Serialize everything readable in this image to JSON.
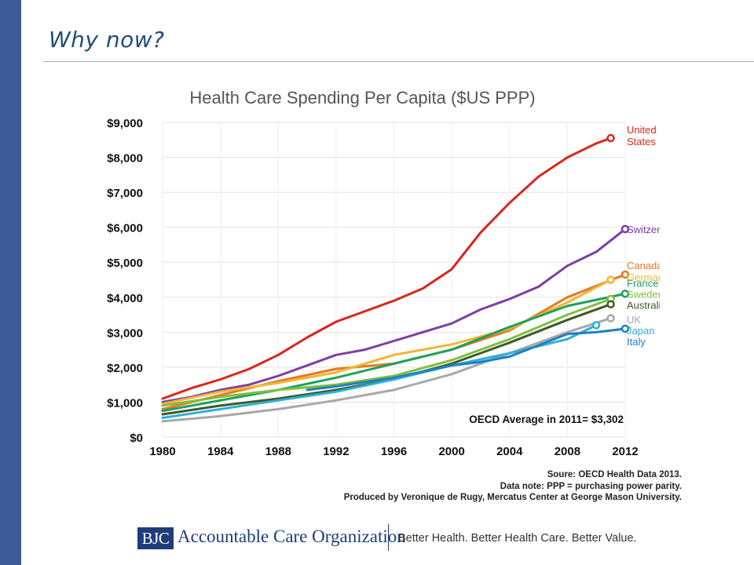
{
  "slide": {
    "title": "Why now?",
    "accent_color": "#3d5a99"
  },
  "chart_data": {
    "type": "line",
    "title": "Health Care Spending Per Capita ($US PPP)",
    "xlabel": "",
    "ylabel": "",
    "xlim": [
      1980,
      2012
    ],
    "ylim": [
      0,
      9000
    ],
    "x_ticks": [
      "1980",
      "1984",
      "1988",
      "1992",
      "1996",
      "2000",
      "2004",
      "2008",
      "2012"
    ],
    "y_ticks": [
      "$0",
      "$1,000",
      "$2,000",
      "$3,000",
      "$4,000",
      "$5,000",
      "$6,000",
      "$7,000",
      "$8,000",
      "$9,000"
    ],
    "grid": true,
    "legend_placement": "right, labels at line ends",
    "annotation": "OECD Average in 2011= $3,302",
    "series": [
      {
        "name": "United States",
        "label_lines": [
          "United",
          "States"
        ],
        "color": "#d9261c",
        "x": [
          1980,
          1982,
          1984,
          1986,
          1988,
          1990,
          1992,
          1994,
          1996,
          1998,
          2000,
          2002,
          2004,
          2006,
          2008,
          2010,
          2011
        ],
        "y": [
          1100,
          1400,
          1650,
          1950,
          2350,
          2850,
          3300,
          3600,
          3900,
          4250,
          4800,
          5850,
          6700,
          7450,
          8000,
          8400,
          8550
        ]
      },
      {
        "name": "Switzerland",
        "label_lines": [
          "Switzerland"
        ],
        "color": "#7b3fa6",
        "x": [
          1980,
          1982,
          1984,
          1986,
          1988,
          1990,
          1992,
          1994,
          1996,
          1998,
          2000,
          2002,
          2004,
          2006,
          2008,
          2010,
          2012
        ],
        "y": [
          1000,
          1150,
          1350,
          1500,
          1750,
          2050,
          2350,
          2500,
          2750,
          3000,
          3250,
          3650,
          3950,
          4300,
          4900,
          5300,
          5950
        ]
      },
      {
        "name": "Canada",
        "label_lines": [
          "Canada"
        ],
        "color": "#e87722",
        "x": [
          1980,
          1984,
          1988,
          1992,
          1996,
          2000,
          2004,
          2008,
          2012
        ],
        "y": [
          800,
          1200,
          1600,
          1950,
          2100,
          2500,
          3050,
          4000,
          4650
        ]
      },
      {
        "name": "Germany",
        "label_lines": [
          "Germany"
        ],
        "color": "#f2b632",
        "x": [
          1980,
          1984,
          1988,
          1992,
          1996,
          2000,
          2004,
          2008,
          2011
        ],
        "y": [
          950,
          1300,
          1550,
          1850,
          2350,
          2650,
          3100,
          3850,
          4500
        ]
      },
      {
        "name": "France",
        "label_lines": [
          "France"
        ],
        "color": "#1aa35b",
        "x": [
          1980,
          1984,
          1988,
          1992,
          1996,
          2000,
          2004,
          2008,
          2012
        ],
        "y": [
          750,
          1050,
          1350,
          1700,
          2100,
          2500,
          3150,
          3750,
          4100
        ]
      },
      {
        "name": "Sweden",
        "label_lines": [
          "Sweden"
        ],
        "color": "#7fbf3f",
        "x": [
          1980,
          1984,
          1988,
          1992,
          1996,
          2000,
          2004,
          2008,
          2011
        ],
        "y": [
          900,
          1150,
          1350,
          1500,
          1750,
          2200,
          2800,
          3500,
          3950
        ]
      },
      {
        "name": "Australia",
        "label_lines": [
          "Australia"
        ],
        "color": "#3d5a2a",
        "x": [
          1980,
          1984,
          1988,
          1992,
          1996,
          2000,
          2004,
          2008,
          2011
        ],
        "y": [
          650,
          900,
          1100,
          1350,
          1650,
          2100,
          2700,
          3350,
          3800
        ]
      },
      {
        "name": "UK",
        "label_lines": [
          "UK"
        ],
        "color": "#a8a8a8",
        "x": [
          1980,
          1984,
          1988,
          1992,
          1996,
          2000,
          2004,
          2008,
          2011
        ],
        "y": [
          450,
          600,
          800,
          1050,
          1350,
          1800,
          2400,
          3000,
          3400
        ]
      },
      {
        "name": "Japan",
        "label_lines": [
          "Japan"
        ],
        "color": "#2bb0d8",
        "x": [
          1980,
          1984,
          1988,
          1992,
          1996,
          2000,
          2004,
          2008,
          2010
        ],
        "y": [
          550,
          800,
          1050,
          1300,
          1650,
          2050,
          2400,
          2800,
          3200
        ]
      },
      {
        "name": "Italy",
        "label_lines": [
          "Italy"
        ],
        "color": "#1f7fc1",
        "x": [
          1990,
          1992,
          1996,
          2000,
          2002,
          2004,
          2008,
          2010,
          2012
        ],
        "y": [
          1350,
          1450,
          1700,
          2050,
          2150,
          2300,
          2950,
          3000,
          3100
        ]
      }
    ]
  },
  "source": {
    "line1": "Soure: OECD Health Data 2013.",
    "line2": "Data note: PPP = purchasing power parity.",
    "line3": "Produced by Veronique de Rugy, Mercatus Center at George Mason University."
  },
  "footer": {
    "logo_mark": "BJC",
    "logo_name": "Accountable Care Organization",
    "tagline": "Better Health. Better Health Care. Better Value."
  }
}
